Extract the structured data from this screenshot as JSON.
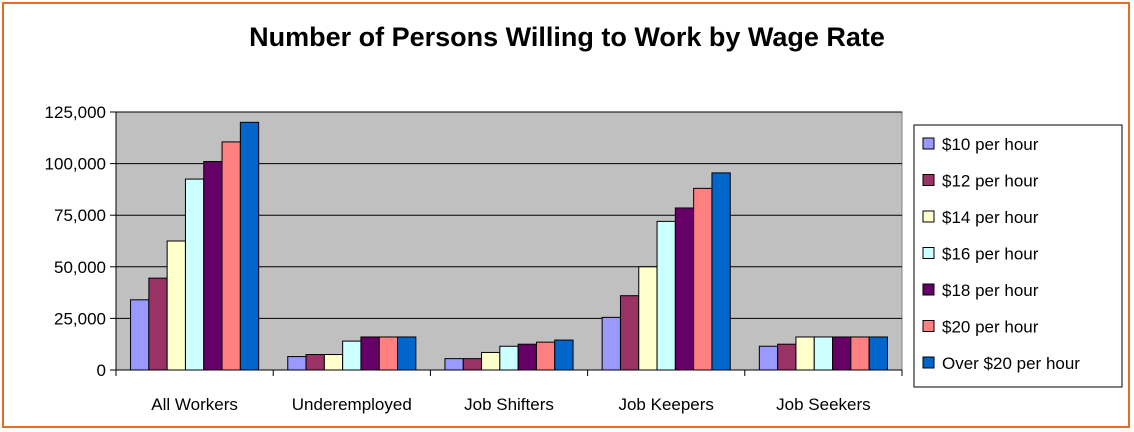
{
  "chart_data": {
    "type": "bar",
    "title": "Number of Persons Willing to Work by Wage Rate",
    "xlabel": "",
    "ylabel": "",
    "ylim": [
      0,
      125000
    ],
    "yticks": [
      0,
      25000,
      50000,
      75000,
      100000,
      125000
    ],
    "ytick_labels": [
      "0",
      "25,000",
      "50,000",
      "75,000",
      "100,000",
      "125,000"
    ],
    "categories": [
      "All Workers",
      "Underemployed",
      "Job Shifters",
      "Job Keepers",
      "Job Seekers"
    ],
    "grid": true,
    "legend_position": "right",
    "series": [
      {
        "name": "$10 per hour",
        "color": "#9999ff",
        "values": [
          34000,
          6500,
          5500,
          25500,
          11500
        ]
      },
      {
        "name": "$12 per hour",
        "color": "#993366",
        "values": [
          44500,
          7500,
          5500,
          36000,
          12500
        ]
      },
      {
        "name": "$14 per hour",
        "color": "#ffffcc",
        "values": [
          62500,
          7500,
          8500,
          50000,
          16000
        ]
      },
      {
        "name": "$16 per hour",
        "color": "#ccffff",
        "values": [
          92500,
          14000,
          11500,
          72000,
          16000
        ]
      },
      {
        "name": "$18 per hour",
        "color": "#660066",
        "values": [
          101000,
          16000,
          12500,
          78500,
          16000
        ]
      },
      {
        "name": "$20 per hour",
        "color": "#ff8080",
        "values": [
          110500,
          16000,
          13500,
          88000,
          16000
        ]
      },
      {
        "name": "Over $20 per hour",
        "color": "#0066cc",
        "values": [
          120000,
          16000,
          14500,
          95500,
          16000
        ]
      }
    ],
    "plot_background": "#c0c0c0",
    "border_color": "#e36c2c"
  }
}
